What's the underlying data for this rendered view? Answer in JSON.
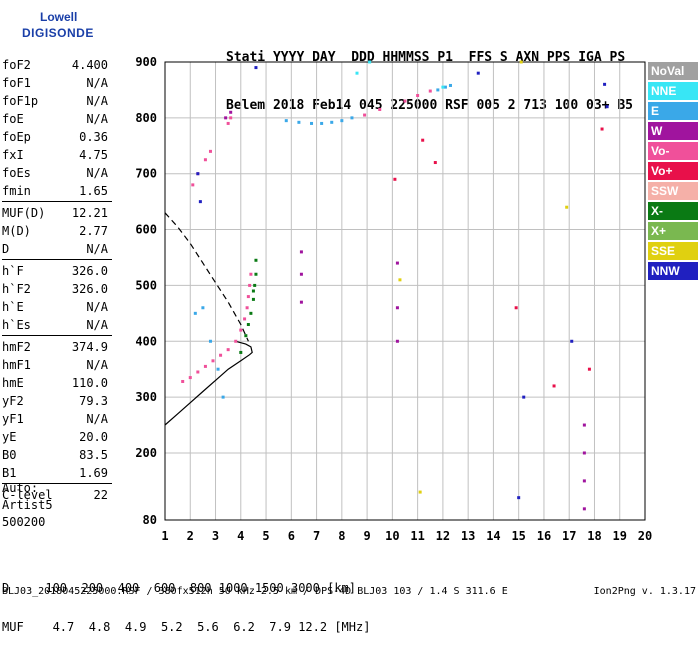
{
  "logo": {
    "line1": "Lowell",
    "line2": "DIGISONDE"
  },
  "header": {
    "row1": "Stati YYYY DAY  DDD HHMMSS P1  FFS S AXN PPS IGA PS",
    "row2": "Belem 2018 Feb14 045 225000 RSF 005 2 713 100 03+ B5"
  },
  "params_group1": [
    {
      "name": "foF2",
      "value": "4.400"
    },
    {
      "name": "foF1",
      "value": "N/A"
    },
    {
      "name": "foF1p",
      "value": "N/A"
    },
    {
      "name": "foE",
      "value": "N/A"
    },
    {
      "name": "foEp",
      "value": "0.36"
    },
    {
      "name": "fxI",
      "value": "4.75"
    },
    {
      "name": "foEs",
      "value": "N/A"
    },
    {
      "name": "fmin",
      "value": "1.65"
    }
  ],
  "params_group2": [
    {
      "name": "MUF(D)",
      "value": "12.21"
    },
    {
      "name": "M(D)",
      "value": "2.77"
    },
    {
      "name": "D",
      "value": "N/A"
    }
  ],
  "params_group3": [
    {
      "name": "h`F",
      "value": "326.0"
    },
    {
      "name": "h`F2",
      "value": "326.0"
    },
    {
      "name": "h`E",
      "value": "N/A"
    },
    {
      "name": "h`Es",
      "value": "N/A"
    }
  ],
  "params_group4": [
    {
      "name": "hmF2",
      "value": "374.9"
    },
    {
      "name": "hmF1",
      "value": "N/A"
    },
    {
      "name": "hmE",
      "value": "110.0"
    },
    {
      "name": "yF2",
      "value": "79.3"
    },
    {
      "name": "yF1",
      "value": "N/A"
    },
    {
      "name": "yE",
      "value": "20.0"
    },
    {
      "name": "B0",
      "value": "83.5"
    },
    {
      "name": "B1",
      "value": "1.69"
    }
  ],
  "params_group5": [
    {
      "name": "C-level",
      "value": "22"
    }
  ],
  "auto": {
    "line1": "Auto:",
    "line2": "Artist5",
    "line3": "500200"
  },
  "legend": [
    {
      "label": "NoVal",
      "color": "#a0a0a0"
    },
    {
      "label": "NNE",
      "color": "#38e6f5"
    },
    {
      "label": "E",
      "color": "#3aa8e8"
    },
    {
      "label": "W",
      "color": "#a0149e"
    },
    {
      "label": "Vo-",
      "color": "#f0509a"
    },
    {
      "label": "Vo+",
      "color": "#e8104a"
    },
    {
      "label": "SSW",
      "color": "#f5b0a8"
    },
    {
      "label": "X-",
      "color": "#0a7a14"
    },
    {
      "label": "X+",
      "color": "#7ab850"
    },
    {
      "label": "SSE",
      "color": "#e0d010"
    },
    {
      "label": "NNW",
      "color": "#2020c0"
    }
  ],
  "bottom": {
    "d_row": "D     100  200  400  600  800 1000 1500 3000 [km]",
    "muf_row": "MUF    4.7  4.8  4.9  5.2  5.6  6.2  7.9 12.2 [MHz]"
  },
  "footer": {
    "left": "BLJ03_2018045225000.RSF / 380fx512h 50 kHz 2.5 km / DPS-4D BLJ03 103 / 1.4 S 311.6 E",
    "right": "Ion2Png v. 1.3.17"
  },
  "chart_data": {
    "type": "scatter",
    "title": "",
    "xlabel": "",
    "ylabel": "",
    "xlim": [
      1,
      20
    ],
    "ylim": [
      80,
      900
    ],
    "x_ticks": [
      1,
      2,
      3,
      4,
      5,
      6,
      7,
      8,
      9,
      10,
      11,
      12,
      13,
      14,
      15,
      16,
      17,
      18,
      19,
      20
    ],
    "y_ticks": [
      80,
      200,
      300,
      400,
      500,
      600,
      700,
      800,
      900
    ],
    "grid": true,
    "series": [
      {
        "name": "X-",
        "color": "#0a7a14",
        "points": [
          [
            4.3,
            430
          ],
          [
            4.4,
            450
          ],
          [
            4.5,
            475
          ],
          [
            4.55,
            500
          ],
          [
            4.6,
            520
          ],
          [
            4.6,
            545
          ],
          [
            4.0,
            380
          ],
          [
            4.2,
            410
          ],
          [
            4.5,
            490
          ]
        ]
      },
      {
        "name": "Vo-",
        "color": "#f0509a",
        "points": [
          [
            1.7,
            328
          ],
          [
            2.0,
            335
          ],
          [
            2.3,
            345
          ],
          [
            2.6,
            355
          ],
          [
            2.9,
            365
          ],
          [
            3.2,
            375
          ],
          [
            3.5,
            385
          ],
          [
            3.8,
            400
          ],
          [
            4.0,
            420
          ],
          [
            4.15,
            440
          ],
          [
            4.25,
            460
          ],
          [
            4.3,
            480
          ],
          [
            4.35,
            500
          ],
          [
            4.4,
            520
          ],
          [
            2.1,
            680
          ],
          [
            2.3,
            700
          ],
          [
            2.6,
            725
          ],
          [
            2.8,
            740
          ],
          [
            3.5,
            790
          ],
          [
            3.6,
            800
          ],
          [
            8.9,
            805
          ],
          [
            9.5,
            815
          ],
          [
            10.5,
            830
          ],
          [
            11.0,
            840
          ],
          [
            11.5,
            848
          ]
        ]
      },
      {
        "name": "E",
        "color": "#3aa8e8",
        "points": [
          [
            5.8,
            795
          ],
          [
            6.3,
            792
          ],
          [
            6.8,
            790
          ],
          [
            7.2,
            790
          ],
          [
            7.6,
            792
          ],
          [
            8.0,
            795
          ],
          [
            8.4,
            800
          ],
          [
            11.8,
            850
          ],
          [
            12.1,
            855
          ],
          [
            12.3,
            858
          ],
          [
            2.2,
            450
          ],
          [
            2.5,
            460
          ],
          [
            2.8,
            400
          ],
          [
            3.1,
            350
          ],
          [
            3.3,
            300
          ]
        ]
      },
      {
        "name": "W",
        "color": "#a0149e",
        "points": [
          [
            3.4,
            800
          ],
          [
            3.6,
            810
          ],
          [
            6.4,
            470
          ],
          [
            6.4,
            520
          ],
          [
            6.4,
            560
          ],
          [
            10.2,
            400
          ],
          [
            10.2,
            460
          ],
          [
            10.2,
            540
          ],
          [
            17.6,
            100
          ],
          [
            17.6,
            150
          ],
          [
            17.6,
            200
          ],
          [
            17.6,
            250
          ]
        ]
      },
      {
        "name": "NNW",
        "color": "#2020c0",
        "points": [
          [
            2.3,
            700
          ],
          [
            2.4,
            650
          ],
          [
            4.6,
            890
          ],
          [
            13.4,
            880
          ],
          [
            15.0,
            120
          ],
          [
            15.2,
            300
          ],
          [
            17.1,
            400
          ],
          [
            18.4,
            860
          ],
          [
            18.5,
            820
          ]
        ]
      },
      {
        "name": "Vo+",
        "color": "#e8104a",
        "points": [
          [
            10.1,
            690
          ],
          [
            11.2,
            760
          ],
          [
            11.7,
            720
          ],
          [
            14.9,
            460
          ],
          [
            16.4,
            320
          ],
          [
            17.8,
            350
          ],
          [
            18.3,
            780
          ]
        ]
      },
      {
        "name": "SSE",
        "color": "#e0d010",
        "points": [
          [
            10.3,
            510
          ],
          [
            11.1,
            130
          ],
          [
            15.1,
            900
          ],
          [
            16.9,
            640
          ]
        ]
      },
      {
        "name": "NNE",
        "color": "#38e6f5",
        "points": [
          [
            12.0,
            855
          ],
          [
            8.6,
            880
          ],
          [
            9.1,
            900
          ]
        ]
      }
    ],
    "curves": [
      {
        "name": "solid-trace",
        "style": "solid",
        "points": [
          [
            1,
            250
          ],
          [
            1.5,
            270
          ],
          [
            2.0,
            290
          ],
          [
            2.5,
            310
          ],
          [
            3.0,
            330
          ],
          [
            3.5,
            350
          ],
          [
            4.0,
            365
          ],
          [
            4.35,
            376
          ],
          [
            4.45,
            380
          ],
          [
            4.4,
            390
          ],
          [
            4.2,
            395
          ],
          [
            3.8,
            400
          ]
        ]
      },
      {
        "name": "dashed-trace",
        "style": "dashed",
        "points": [
          [
            1.0,
            630
          ],
          [
            1.5,
            605
          ],
          [
            2.0,
            575
          ],
          [
            2.5,
            540
          ],
          [
            3.0,
            505
          ],
          [
            3.5,
            470
          ],
          [
            4.0,
            430
          ],
          [
            4.3,
            400
          ]
        ]
      }
    ]
  }
}
